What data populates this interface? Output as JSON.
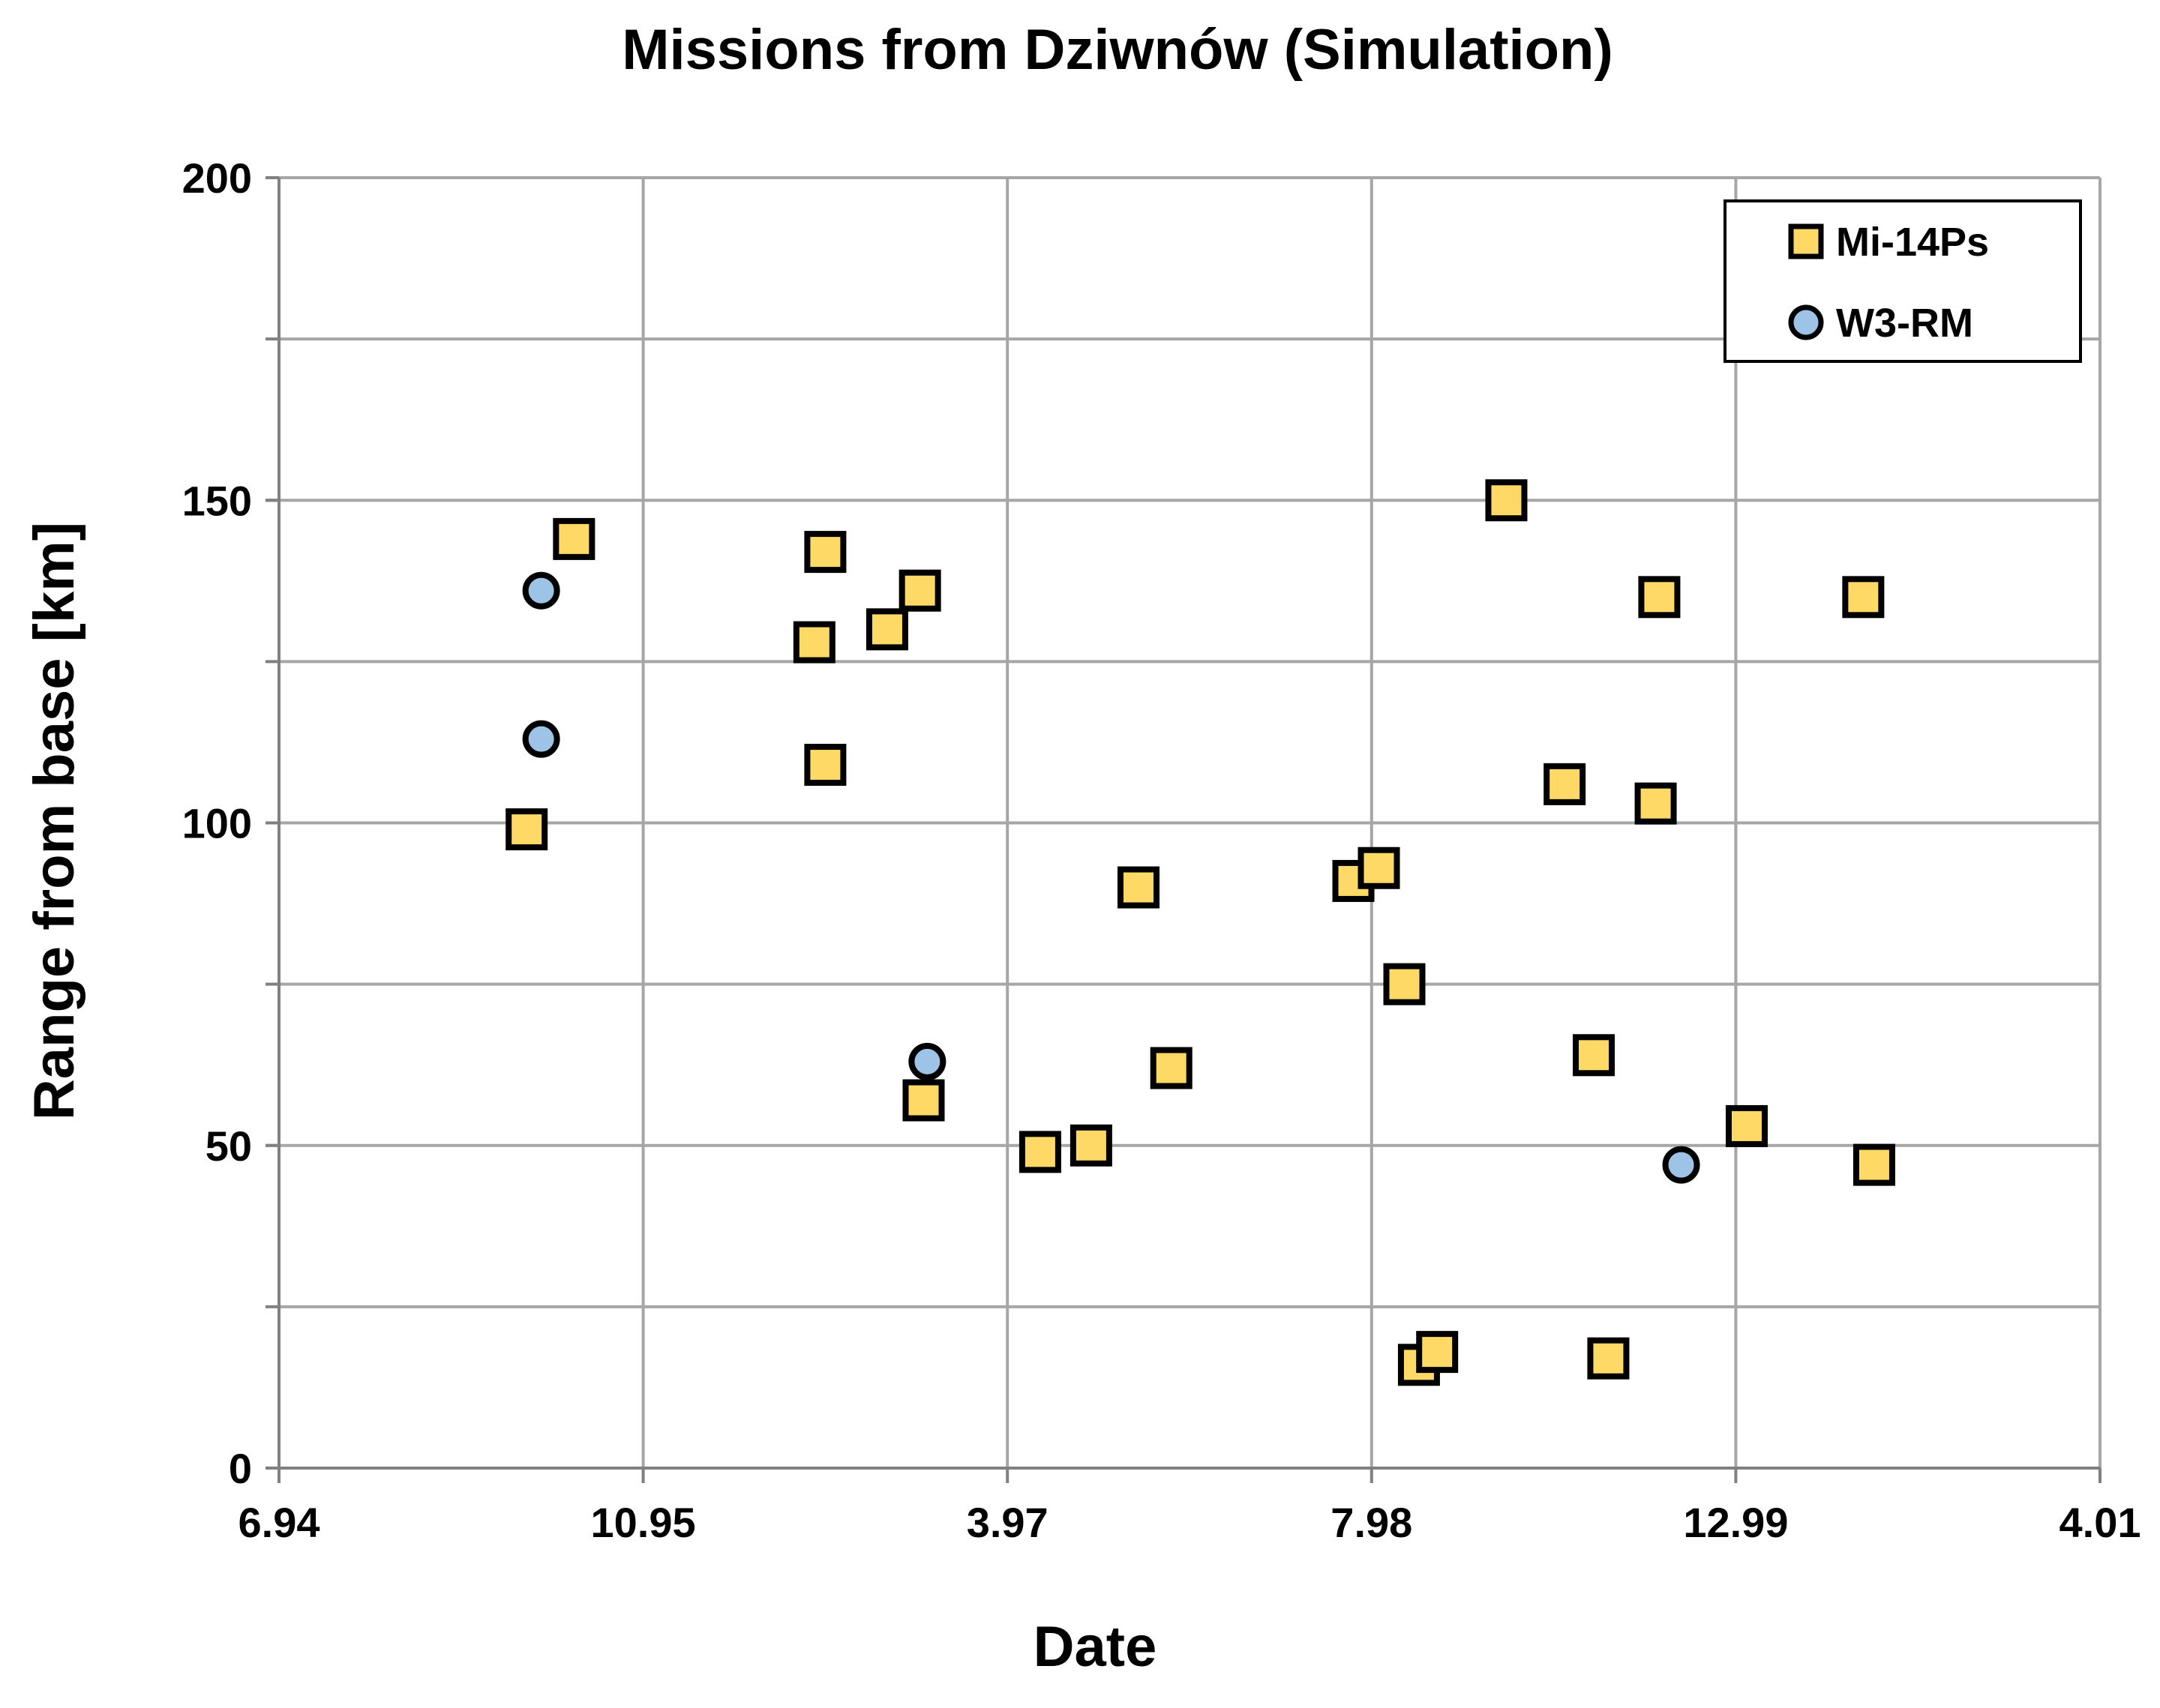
{
  "chart_data": {
    "type": "scatter",
    "title": "Missions from Dziwnów (Simulation)",
    "xlabel": "Date",
    "ylabel": "Range from base [km]",
    "x_tick_labels": [
      "6.94",
      "10.95",
      "3.97",
      "7.98",
      "12.99",
      "4.01"
    ],
    "x_range": [
      0,
      5
    ],
    "y_ticks": [
      "0",
      "50",
      "100",
      "150",
      "200"
    ],
    "ylim": [
      0,
      200
    ],
    "y_gridlines": [
      0,
      25,
      50,
      75,
      100,
      125,
      150,
      175,
      200
    ],
    "grid": true,
    "legend_position": "top-right",
    "series": [
      {
        "name": "Mi-14Ps",
        "marker": "square",
        "fill": "#ffd966",
        "stroke": "#000000",
        "points": [
          {
            "x": 0.68,
            "y": 99
          },
          {
            "x": 0.81,
            "y": 144
          },
          {
            "x": 1.47,
            "y": 128
          },
          {
            "x": 1.5,
            "y": 142
          },
          {
            "x": 1.5,
            "y": 109
          },
          {
            "x": 1.67,
            "y": 130
          },
          {
            "x": 1.76,
            "y": 136
          },
          {
            "x": 1.77,
            "y": 57
          },
          {
            "x": 2.09,
            "y": 49
          },
          {
            "x": 2.23,
            "y": 50
          },
          {
            "x": 2.36,
            "y": 90
          },
          {
            "x": 2.45,
            "y": 62
          },
          {
            "x": 2.95,
            "y": 91
          },
          {
            "x": 3.02,
            "y": 93
          },
          {
            "x": 3.09,
            "y": 75
          },
          {
            "x": 3.13,
            "y": 16
          },
          {
            "x": 3.18,
            "y": 18
          },
          {
            "x": 3.37,
            "y": 150
          },
          {
            "x": 3.53,
            "y": 106
          },
          {
            "x": 3.61,
            "y": 64
          },
          {
            "x": 3.65,
            "y": 17
          },
          {
            "x": 3.78,
            "y": 103
          },
          {
            "x": 3.79,
            "y": 135
          },
          {
            "x": 4.03,
            "y": 53
          },
          {
            "x": 4.35,
            "y": 135
          },
          {
            "x": 4.38,
            "y": 47
          }
        ]
      },
      {
        "name": "W3-RM",
        "marker": "circle",
        "fill": "#9dc3e6",
        "stroke": "#000000",
        "points": [
          {
            "x": 0.72,
            "y": 136
          },
          {
            "x": 0.72,
            "y": 113
          },
          {
            "x": 1.78,
            "y": 63
          },
          {
            "x": 3.85,
            "y": 47
          }
        ]
      }
    ]
  }
}
